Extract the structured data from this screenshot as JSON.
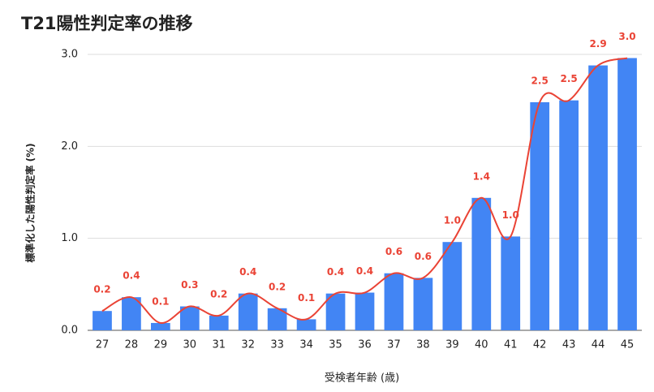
{
  "chart_data": {
    "type": "bar",
    "title": "T21陽性判定率の推移",
    "x_label": "受検者年齢 (歳)",
    "y_label": "標準化した陽性判定率 (%)",
    "categories": [
      "27",
      "28",
      "29",
      "30",
      "31",
      "32",
      "33",
      "34",
      "35",
      "36",
      "37",
      "38",
      "39",
      "40",
      "41",
      "42",
      "43",
      "44",
      "45"
    ],
    "values": [
      0.21,
      0.36,
      0.08,
      0.26,
      0.16,
      0.4,
      0.24,
      0.12,
      0.4,
      0.41,
      0.62,
      0.57,
      0.96,
      1.44,
      1.02,
      2.48,
      2.5,
      2.88,
      2.96
    ],
    "value_labels": [
      "0.2",
      "0.4",
      "0.1",
      "0.3",
      "0.2",
      "0.4",
      "0.2",
      "0.1",
      "0.4",
      "0.4",
      "0.6",
      "0.6",
      "1.0",
      "1.4",
      "1.0",
      "2.5",
      "2.5",
      "2.9",
      "3.0"
    ],
    "color": "#4285f4",
    "smooth_line": true,
    "line_color": "#ea4335",
    "ylim": [
      0,
      3
    ],
    "yticks": [
      {
        "value": 0,
        "label": "0.0"
      },
      {
        "value": 1,
        "label": "1.0"
      },
      {
        "value": 2,
        "label": "2.0"
      },
      {
        "value": 3,
        "label": "3.0"
      }
    ],
    "grid": true
  }
}
